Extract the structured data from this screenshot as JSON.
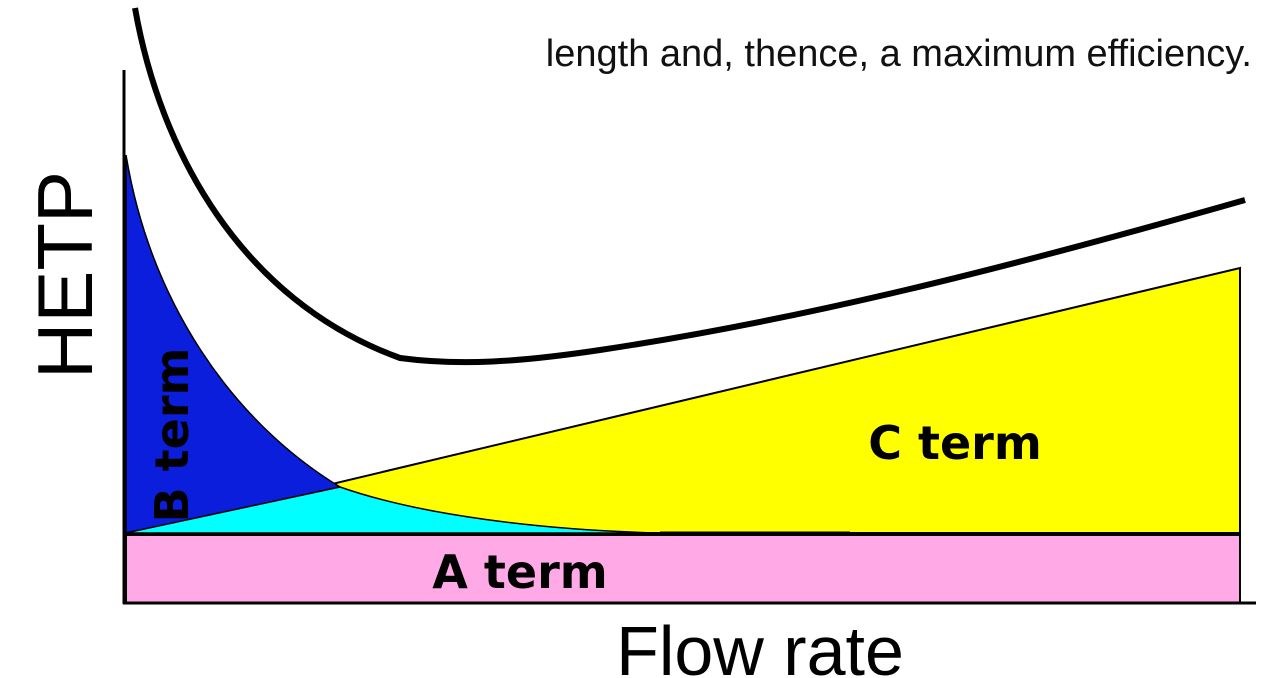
{
  "caption": "length and, thence, a maximum efficiency.",
  "axes": {
    "y_label": "HETP",
    "x_label": "Flow rate"
  },
  "regions": {
    "b_term": "B term",
    "c_term": "C term",
    "a_term": "A term"
  }
}
